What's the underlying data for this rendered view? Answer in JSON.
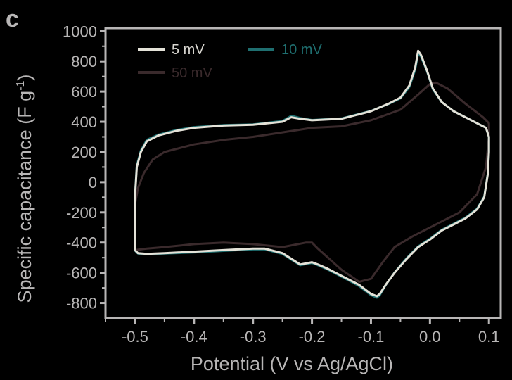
{
  "panel_label": "c",
  "chart_data": {
    "type": "line",
    "title": "",
    "xlabel": "Potential (V vs Ag/AgCl)",
    "ylabel": "Specific capacitance (F g",
    "ylabel_sup": "-1",
    "ylabel_end": ")",
    "xlim": [
      -0.55,
      0.12
    ],
    "ylim": [
      -900,
      1020
    ],
    "xticks": [
      -0.5,
      -0.4,
      -0.3,
      -0.2,
      -0.1,
      0.0,
      0.1
    ],
    "xtick_labels": [
      "-0.5",
      "-0.4",
      "-0.3",
      "-0.2",
      "-0.1",
      "0.0",
      "0.1"
    ],
    "yticks": [
      -800,
      -600,
      -400,
      -200,
      0,
      200,
      400,
      600,
      800,
      1000
    ],
    "ytick_labels": [
      "-800",
      "-600",
      "-400",
      "-200",
      "0",
      "200",
      "400",
      "600",
      "800",
      "1000"
    ],
    "grid": false,
    "legend_position": "top",
    "series": [
      {
        "name": "5 mV",
        "color": "#e4e2d8",
        "x": [
          -0.5,
          -0.497,
          -0.49,
          -0.48,
          -0.46,
          -0.43,
          -0.4,
          -0.35,
          -0.3,
          -0.25,
          -0.235,
          -0.22,
          -0.2,
          -0.15,
          -0.1,
          -0.07,
          -0.05,
          -0.035,
          -0.025,
          -0.02,
          -0.015,
          -0.005,
          0.005,
          0.02,
          0.04,
          0.06,
          0.08,
          0.095,
          0.1,
          0.1,
          0.098,
          0.092,
          0.08,
          0.06,
          0.04,
          0.02,
          0.0,
          -0.02,
          -0.04,
          -0.06,
          -0.075,
          -0.085,
          -0.09,
          -0.1,
          -0.12,
          -0.15,
          -0.175,
          -0.19,
          -0.2,
          -0.22,
          -0.25,
          -0.28,
          -0.3,
          -0.35,
          -0.4,
          -0.45,
          -0.48,
          -0.495,
          -0.5,
          -0.5
        ],
        "y": [
          -100,
          100,
          200,
          270,
          310,
          340,
          360,
          375,
          380,
          400,
          430,
          420,
          410,
          420,
          470,
          520,
          560,
          640,
          760,
          870,
          840,
          740,
          620,
          530,
          470,
          430,
          390,
          360,
          300,
          200,
          50,
          -100,
          -180,
          -240,
          -280,
          -320,
          -380,
          -430,
          -510,
          -600,
          -680,
          -740,
          -755,
          -740,
          -680,
          -620,
          -570,
          -545,
          -530,
          -545,
          -470,
          -440,
          -440,
          -450,
          -460,
          -470,
          -475,
          -470,
          -450,
          -100
        ]
      },
      {
        "name": "10 mV",
        "color": "#1f6f70",
        "x": [
          -0.5,
          -0.497,
          -0.49,
          -0.48,
          -0.46,
          -0.43,
          -0.4,
          -0.35,
          -0.3,
          -0.25,
          -0.235,
          -0.22,
          -0.2,
          -0.15,
          -0.1,
          -0.07,
          -0.05,
          -0.035,
          -0.025,
          -0.02,
          -0.015,
          -0.005,
          0.005,
          0.02,
          0.04,
          0.06,
          0.08,
          0.095,
          0.1,
          0.1,
          0.098,
          0.092,
          0.08,
          0.06,
          0.04,
          0.02,
          0.0,
          -0.02,
          -0.04,
          -0.06,
          -0.075,
          -0.085,
          -0.09,
          -0.1,
          -0.12,
          -0.15,
          -0.175,
          -0.19,
          -0.2,
          -0.22,
          -0.25,
          -0.28,
          -0.3,
          -0.35,
          -0.4,
          -0.45,
          -0.48,
          -0.495,
          -0.5,
          -0.5
        ],
        "y": [
          -90,
          110,
          210,
          280,
          315,
          345,
          365,
          378,
          383,
          405,
          440,
          425,
          412,
          422,
          472,
          518,
          555,
          630,
          745,
          855,
          830,
          735,
          615,
          530,
          470,
          430,
          390,
          360,
          300,
          200,
          55,
          -95,
          -175,
          -235,
          -275,
          -315,
          -375,
          -425,
          -505,
          -598,
          -682,
          -748,
          -765,
          -748,
          -688,
          -625,
          -575,
          -550,
          -535,
          -550,
          -475,
          -445,
          -445,
          -455,
          -465,
          -472,
          -478,
          -472,
          -452,
          -90
        ]
      },
      {
        "name": "50 mV",
        "color": "#3a2a2c",
        "x": [
          -0.5,
          -0.495,
          -0.485,
          -0.47,
          -0.45,
          -0.4,
          -0.35,
          -0.3,
          -0.25,
          -0.2,
          -0.15,
          -0.1,
          -0.05,
          -0.02,
          0.0,
          0.01,
          0.03,
          0.06,
          0.09,
          0.1,
          0.1,
          0.095,
          0.08,
          0.05,
          0.02,
          0.0,
          -0.03,
          -0.06,
          -0.08,
          -0.1,
          -0.12,
          -0.15,
          -0.19,
          -0.2,
          -0.21,
          -0.25,
          -0.3,
          -0.35,
          -0.4,
          -0.45,
          -0.48,
          -0.5,
          -0.5
        ],
        "y": [
          -150,
          -40,
          60,
          150,
          200,
          250,
          280,
          300,
          330,
          360,
          370,
          410,
          480,
          580,
          650,
          660,
          620,
          520,
          430,
          390,
          300,
          100,
          -80,
          -200,
          -260,
          -300,
          -360,
          -430,
          -530,
          -640,
          -660,
          -580,
          -440,
          -400,
          -400,
          -430,
          -410,
          -400,
          -410,
          -430,
          -440,
          -450,
          -150
        ]
      }
    ]
  }
}
